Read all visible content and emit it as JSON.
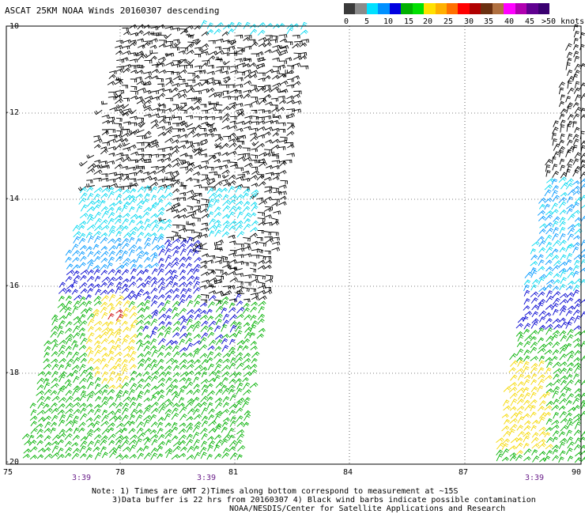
{
  "title": "ASCAT 25KM NOAA Winds 20160307 descending",
  "legend": {
    "labels": [
      "0",
      "5",
      "10",
      "15",
      "20",
      "25",
      "30",
      "35",
      "40",
      "45",
      ">50 knots"
    ],
    "colors": [
      "#3a3a3a",
      "#8a8a8a",
      "#00e0ff",
      "#0090ff",
      "#0000e0",
      "#00b000",
      "#00e000",
      "#ffe000",
      "#ffb000",
      "#ff7000",
      "#ff0000",
      "#b00000",
      "#6a3010",
      "#b07040",
      "#ff00ff",
      "#b000b0",
      "#600090",
      "#3a0070"
    ]
  },
  "axes": {
    "y_labels": [
      "-10",
      "-12",
      "-14",
      "-16",
      "-18",
      "-20"
    ],
    "x_labels": [
      "75",
      "78",
      "81",
      "84",
      "87",
      "90"
    ],
    "time_labels": [
      "3:39",
      "3:39",
      "3:39"
    ]
  },
  "notes": [
    "Note: 1) Times are GMT 2)Times along bottom correspond to measurement at ~15S",
    "3)Data buffer is 22 hrs from 20160307 4) Black wind barbs indicate possible contamination",
    "NOAA/NESDIS/Center for Satellite Applications and Research"
  ],
  "colors": {
    "black_barb": "#000000",
    "cyan_barb": "#00d8f0",
    "light_blue_barb": "#0098ff",
    "blue_barb": "#0000d0",
    "green_barb": "#00b000",
    "yellow_barb": "#f5d800",
    "red_barb": "#cc0000",
    "time_label": "#6a1f8a"
  }
}
